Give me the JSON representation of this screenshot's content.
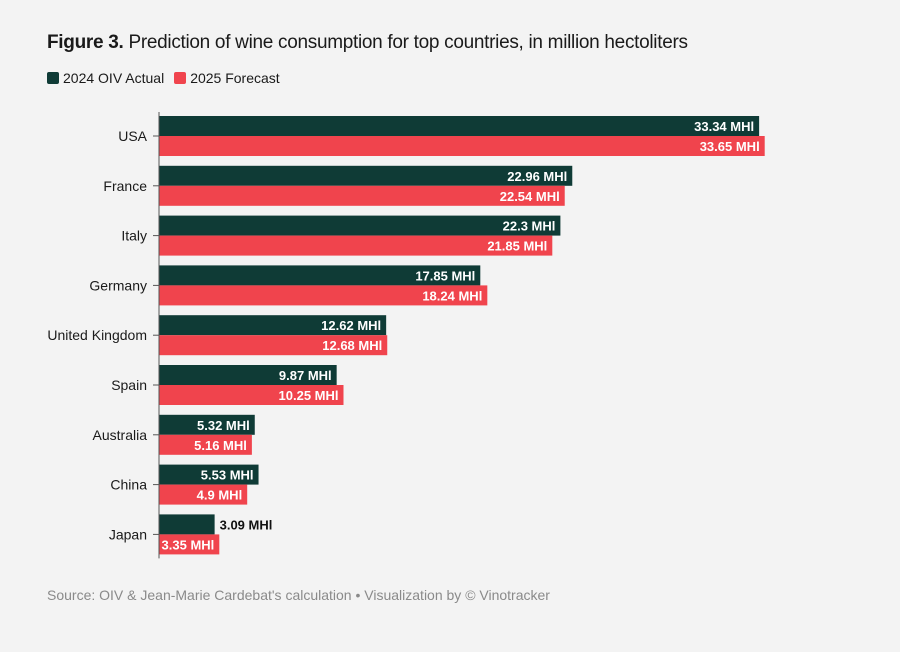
{
  "title_bold": "Figure 3.",
  "title_rest": " Prediction of wine consumption for top countries, in million hectoliters",
  "source": "Source: OIV & Jean-Marie Cardebat's calculation • Visualization by © Vinotracker",
  "colors": {
    "actual": "#0f3b36",
    "forecast": "#f0444d",
    "axis": "#555555",
    "label_inside": "#ffffff",
    "label_outside": "#111111"
  },
  "chart_data": {
    "type": "bar",
    "orientation": "horizontal",
    "title": "Figure 3. Prediction of wine consumption for top countries, in million hectoliters",
    "categories": [
      "USA",
      "France",
      "Italy",
      "Germany",
      "United Kingdom",
      "Spain",
      "Australia",
      "China",
      "Japan"
    ],
    "series": [
      {
        "name": "2024 OIV Actual",
        "values": [
          33.34,
          22.96,
          22.3,
          17.85,
          12.62,
          9.87,
          5.32,
          5.53,
          3.09
        ],
        "labels": [
          "33.34 MHl",
          "22.96 MHl",
          "22.3 MHl",
          "17.85 MHl",
          "12.62 MHl",
          "9.87 MHl",
          "5.32 MHl",
          "5.53 MHl",
          "3.09 MHl"
        ]
      },
      {
        "name": "2025 Forecast",
        "values": [
          33.65,
          22.54,
          21.85,
          18.24,
          12.68,
          10.25,
          5.16,
          4.9,
          3.35
        ],
        "labels": [
          "33.65 MHl",
          "22.54 MHl",
          "21.85 MHl",
          "18.24 MHl",
          "12.68 MHl",
          "10.25 MHl",
          "5.16 MHl",
          "4.9 MHl",
          "3.35 MHl"
        ]
      }
    ],
    "xlim": [
      0,
      35
    ],
    "legend_position": "top-left",
    "unit": "million hectoliters"
  }
}
